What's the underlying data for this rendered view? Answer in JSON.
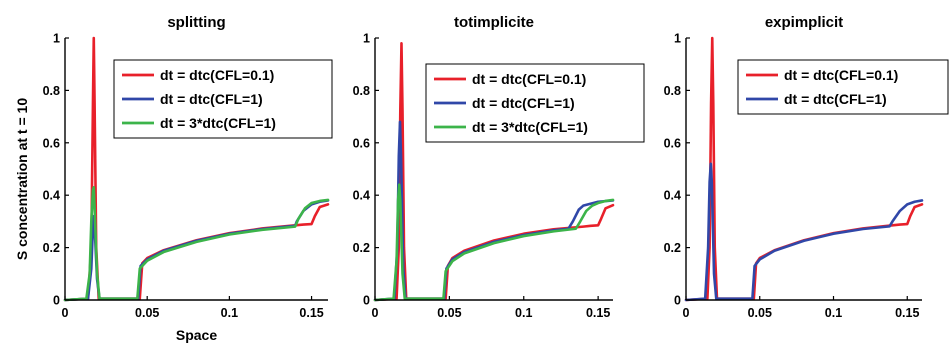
{
  "chart_data": [
    {
      "type": "line",
      "title": "splitting",
      "xlabel": "Space",
      "ylabel": "S concentration at t = 10",
      "xlim": [
        0,
        0.16
      ],
      "ylim": [
        0,
        1
      ],
      "xticks": [
        "0",
        "0.05",
        "0.1",
        "0.15"
      ],
      "yticks": [
        "0",
        "0.2",
        "0.4",
        "0.6",
        "0.8",
        "1"
      ],
      "legend_position": "top-right",
      "series": [
        {
          "name": "dt = dtc(CFL=0.1)",
          "color": "#e8202a",
          "x": [
            0,
            0.014,
            0.016,
            0.017,
            0.0175,
            0.018,
            0.019,
            0.0205,
            0.043,
            0.0455,
            0.047,
            0.05,
            0.06,
            0.08,
            0.1,
            0.12,
            0.14,
            0.145,
            0.15,
            0.152,
            0.155,
            0.16
          ],
          "y": [
            0,
            0.005,
            0.2,
            0.75,
            1.0,
            0.75,
            0.2,
            0.005,
            0.005,
            0.005,
            0.14,
            0.16,
            0.19,
            0.228,
            0.255,
            0.273,
            0.285,
            0.288,
            0.29,
            0.32,
            0.355,
            0.365
          ]
        },
        {
          "name": "dt = dtc(CFL=1)",
          "color": "#3047a8",
          "x": [
            0,
            0.014,
            0.016,
            0.017,
            0.0175,
            0.018,
            0.0195,
            0.021,
            0.042,
            0.0445,
            0.046,
            0.05,
            0.06,
            0.08,
            0.1,
            0.12,
            0.14,
            0.141,
            0.145,
            0.15,
            0.155,
            0.16
          ],
          "y": [
            0,
            0.005,
            0.12,
            0.28,
            0.32,
            0.28,
            0.08,
            0.005,
            0.005,
            0.005,
            0.13,
            0.155,
            0.188,
            0.226,
            0.253,
            0.271,
            0.283,
            0.3,
            0.34,
            0.365,
            0.375,
            0.38
          ]
        },
        {
          "name": "dt = 3*dtc(CFL=1)",
          "color": "#3cb44a",
          "x": [
            0,
            0.013,
            0.015,
            0.016,
            0.017,
            0.0175,
            0.018,
            0.0195,
            0.021,
            0.042,
            0.044,
            0.0455,
            0.05,
            0.06,
            0.08,
            0.1,
            0.12,
            0.14,
            0.142,
            0.146,
            0.15,
            0.155,
            0.16
          ],
          "y": [
            0,
            0.005,
            0.1,
            0.3,
            0.42,
            0.43,
            0.35,
            0.1,
            0.005,
            0.005,
            0.005,
            0.12,
            0.15,
            0.183,
            0.222,
            0.25,
            0.268,
            0.28,
            0.31,
            0.35,
            0.37,
            0.378,
            0.382
          ]
        }
      ]
    },
    {
      "type": "line",
      "title": "totimplicite",
      "xlabel": "",
      "ylabel": "",
      "xlim": [
        0,
        0.16
      ],
      "ylim": [
        0,
        1
      ],
      "xticks": [
        "0",
        "0.05",
        "0.1",
        "0.15"
      ],
      "yticks": [
        "0",
        "0.2",
        "0.4",
        "0.6",
        "0.8",
        "1"
      ],
      "legend_position": "top-right",
      "series": [
        {
          "name": "dt = dtc(CFL=0.1)",
          "color": "#e8202a",
          "x": [
            0,
            0.0145,
            0.016,
            0.017,
            0.0178,
            0.0185,
            0.0195,
            0.021,
            0.046,
            0.0475,
            0.049,
            0.052,
            0.06,
            0.08,
            0.1,
            0.12,
            0.14,
            0.145,
            0.15,
            0.152,
            0.155,
            0.16
          ],
          "y": [
            0,
            0.005,
            0.2,
            0.72,
            0.98,
            0.72,
            0.2,
            0.005,
            0.005,
            0.005,
            0.13,
            0.16,
            0.188,
            0.227,
            0.253,
            0.27,
            0.28,
            0.283,
            0.285,
            0.31,
            0.35,
            0.362
          ]
        },
        {
          "name": "dt = dtc(CFL=1)",
          "color": "#3047a8",
          "x": [
            0,
            0.013,
            0.015,
            0.016,
            0.0168,
            0.0175,
            0.019,
            0.0205,
            0.045,
            0.0465,
            0.048,
            0.052,
            0.06,
            0.08,
            0.1,
            0.12,
            0.13,
            0.133,
            0.137,
            0.14,
            0.15,
            0.16
          ],
          "y": [
            0,
            0.005,
            0.2,
            0.55,
            0.68,
            0.55,
            0.12,
            0.005,
            0.005,
            0.005,
            0.12,
            0.155,
            0.183,
            0.222,
            0.248,
            0.266,
            0.272,
            0.3,
            0.345,
            0.36,
            0.375,
            0.38
          ]
        },
        {
          "name": "dt = 3*dtc(CFL=1)",
          "color": "#3cb44a",
          "x": [
            0,
            0.0125,
            0.0145,
            0.0155,
            0.0163,
            0.017,
            0.0185,
            0.02,
            0.045,
            0.046,
            0.0475,
            0.052,
            0.06,
            0.08,
            0.1,
            0.12,
            0.135,
            0.138,
            0.142,
            0.146,
            0.15,
            0.155,
            0.16
          ],
          "y": [
            0,
            0.005,
            0.15,
            0.38,
            0.44,
            0.38,
            0.1,
            0.005,
            0.005,
            0.005,
            0.11,
            0.148,
            0.178,
            0.217,
            0.244,
            0.262,
            0.272,
            0.3,
            0.34,
            0.36,
            0.37,
            0.378,
            0.382
          ]
        }
      ]
    },
    {
      "type": "line",
      "title": "expimplicit",
      "xlabel": "",
      "ylabel": "",
      "xlim": [
        0,
        0.16
      ],
      "ylim": [
        0,
        1
      ],
      "xticks": [
        "0",
        "0.05",
        "0.1",
        "0.15"
      ],
      "yticks": [
        "0",
        "0.2",
        "0.4",
        "0.6",
        "0.8",
        "1"
      ],
      "legend_position": "top-right",
      "series": [
        {
          "name": "dt = dtc(CFL=0.1)",
          "color": "#e8202a",
          "x": [
            0,
            0.0145,
            0.016,
            0.017,
            0.0178,
            0.0185,
            0.0195,
            0.021,
            0.0445,
            0.046,
            0.0475,
            0.05,
            0.06,
            0.08,
            0.1,
            0.12,
            0.14,
            0.145,
            0.15,
            0.152,
            0.155,
            0.16
          ],
          "y": [
            0,
            0.005,
            0.2,
            0.75,
            1.0,
            0.75,
            0.2,
            0.005,
            0.005,
            0.005,
            0.14,
            0.16,
            0.19,
            0.228,
            0.255,
            0.273,
            0.285,
            0.288,
            0.29,
            0.32,
            0.355,
            0.365
          ]
        },
        {
          "name": "dt = dtc(CFL=1)",
          "color": "#3047a8",
          "x": [
            0,
            0.013,
            0.015,
            0.016,
            0.0168,
            0.0175,
            0.019,
            0.0205,
            0.0435,
            0.045,
            0.0465,
            0.05,
            0.06,
            0.08,
            0.1,
            0.12,
            0.138,
            0.14,
            0.145,
            0.15,
            0.155,
            0.16
          ],
          "y": [
            0,
            0.005,
            0.2,
            0.45,
            0.52,
            0.45,
            0.1,
            0.005,
            0.005,
            0.005,
            0.13,
            0.155,
            0.188,
            0.226,
            0.253,
            0.271,
            0.281,
            0.3,
            0.34,
            0.365,
            0.375,
            0.38
          ]
        }
      ]
    }
  ]
}
